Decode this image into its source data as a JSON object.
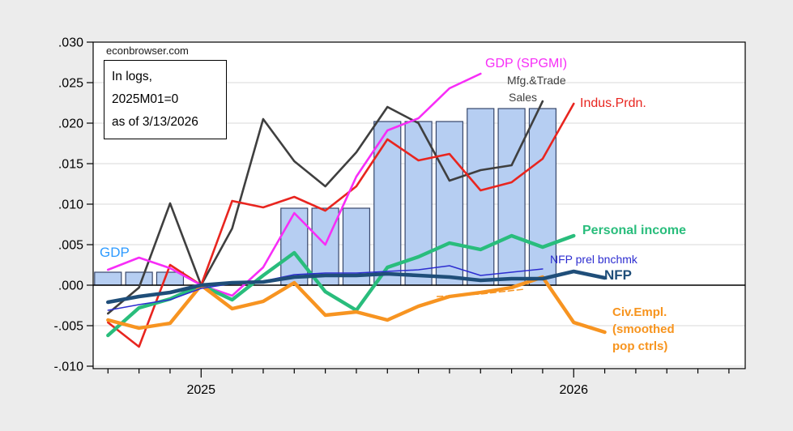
{
  "watermark": "econbrowser.com",
  "annotation": {
    "line1": "In logs,",
    "line2": "2025M01=0",
    "line3": "as of 3/13/2026"
  },
  "chart_data": {
    "type": "combo-bar-line",
    "x_axis": {
      "start_month": "2024-10",
      "months_ticked": 21,
      "year_ticks": [
        {
          "index": 3,
          "label": "2025"
        },
        {
          "index": 15,
          "label": "2026"
        }
      ]
    },
    "y_axis": {
      "min": -0.01,
      "max": 0.03,
      "step": 0.005,
      "grid": true,
      "tick_labels": [
        ".030",
        ".025",
        ".020",
        ".015",
        ".010",
        ".005",
        ".000",
        "-.005",
        "-.010"
      ],
      "tick_values": [
        0.03,
        0.025,
        0.02,
        0.015,
        0.01,
        0.005,
        0.0,
        -0.005,
        -0.01
      ]
    },
    "series": [
      {
        "name": "GDP",
        "type": "bar",
        "fill": "#b6cef2",
        "stroke": "#37476b",
        "points": [
          [
            0,
            0.0016
          ],
          [
            1,
            0.0016
          ],
          [
            2,
            0.0016
          ],
          [
            6,
            0.0095
          ],
          [
            7,
            0.0095
          ],
          [
            8,
            0.0095
          ],
          [
            9,
            0.0202
          ],
          [
            10,
            0.0202
          ],
          [
            11,
            0.0202
          ],
          [
            12,
            0.0218
          ],
          [
            13,
            0.0218
          ],
          [
            14,
            0.0218
          ]
        ]
      },
      {
        "name": "Mfg.&Trade Sales",
        "type": "line",
        "color": "#3f3f3f",
        "width": 2.6,
        "points": [
          [
            0,
            -0.0035
          ],
          [
            1,
            -0.0003
          ],
          [
            2,
            0.0101
          ],
          [
            3,
            0
          ],
          [
            4,
            0.007
          ],
          [
            5,
            0.0205
          ],
          [
            6,
            0.0153
          ],
          [
            7,
            0.0122
          ],
          [
            8,
            0.0164
          ],
          [
            9,
            0.022
          ],
          [
            10,
            0.02
          ],
          [
            11,
            0.0129
          ],
          [
            12,
            0.0142
          ],
          [
            13,
            0.0148
          ],
          [
            14,
            0.0227
          ]
        ]
      },
      {
        "name": "Indus.Prdn.",
        "type": "line",
        "color": "#e8251f",
        "width": 2.6,
        "points": [
          [
            0,
            -0.0046
          ],
          [
            1,
            -0.0076
          ],
          [
            2,
            0.0025
          ],
          [
            3,
            0
          ],
          [
            4,
            0.0104
          ],
          [
            5,
            0.0096
          ],
          [
            6,
            0.0109
          ],
          [
            7,
            0.0092
          ],
          [
            8,
            0.0122
          ],
          [
            9,
            0.018
          ],
          [
            10,
            0.0154
          ],
          [
            11,
            0.0162
          ],
          [
            12,
            0.0117
          ],
          [
            13,
            0.0127
          ],
          [
            14,
            0.0156
          ],
          [
            15,
            0.0224
          ]
        ]
      },
      {
        "name": "GDP (SPGMI)",
        "type": "line",
        "color": "#f72df7",
        "width": 2.6,
        "points": [
          [
            0,
            0.0019
          ],
          [
            1,
            0.0034
          ],
          [
            2,
            0.0021
          ],
          [
            3,
            0
          ],
          [
            4,
            -0.0013
          ],
          [
            5,
            0.0022
          ],
          [
            6,
            0.0089
          ],
          [
            7,
            0.005
          ],
          [
            8,
            0.0134
          ],
          [
            9,
            0.0191
          ],
          [
            10,
            0.0206
          ],
          [
            11,
            0.0243
          ],
          [
            12,
            0.0261
          ]
        ]
      },
      {
        "name": "Personal income",
        "type": "line",
        "color": "#29bd7c",
        "width": 4.4,
        "points": [
          [
            0,
            -0.0062
          ],
          [
            1,
            -0.0028
          ],
          [
            2,
            -0.0017
          ],
          [
            3,
            0
          ],
          [
            4,
            -0.0018
          ],
          [
            5,
            0.0012
          ],
          [
            6,
            0.004
          ],
          [
            7,
            -0.0008
          ],
          [
            8,
            -0.0031
          ],
          [
            9,
            0.0022
          ],
          [
            10,
            0.0035
          ],
          [
            11,
            0.0052
          ],
          [
            12,
            0.0044
          ],
          [
            13,
            0.0061
          ],
          [
            14,
            0.0047
          ],
          [
            15,
            0.0061
          ]
        ]
      },
      {
        "name": "Civ.Empl. (smoothed pop ctrls)",
        "type": "line",
        "color": "#f79421",
        "width": 4.4,
        "points": [
          [
            0,
            -0.0043
          ],
          [
            1,
            -0.0053
          ],
          [
            2,
            -0.0047
          ],
          [
            3,
            0
          ],
          [
            4,
            -0.0029
          ],
          [
            5,
            -0.002
          ],
          [
            6,
            0.0003
          ],
          [
            7,
            -0.0037
          ],
          [
            8,
            -0.0033
          ],
          [
            9,
            -0.0043
          ],
          [
            10,
            -0.0026
          ],
          [
            11,
            -0.0014
          ],
          [
            12,
            -0.0009
          ],
          [
            13,
            -0.0003
          ],
          [
            14,
            0.001
          ],
          [
            15,
            -0.0046
          ],
          [
            16,
            -0.0058
          ]
        ]
      },
      {
        "name": "Civ.Empl. dashed segment",
        "type": "line",
        "color": "#f79421",
        "width": 1.5,
        "dash": "7 4",
        "points": [
          [
            10.6,
            -0.0014
          ],
          [
            12,
            -0.0011
          ],
          [
            13.4,
            -0.0005
          ]
        ]
      },
      {
        "name": "NFP prel bnchmk",
        "type": "line",
        "color": "#2d2dd0",
        "width": 1.5,
        "points": [
          [
            0,
            -0.0031
          ],
          [
            1,
            -0.0024
          ],
          [
            2,
            -0.0018
          ],
          [
            3,
            -0.0004
          ],
          [
            4,
            0.0002
          ],
          [
            5,
            0.0005
          ],
          [
            6,
            0.0013
          ],
          [
            7,
            0.0015
          ],
          [
            8,
            0.0015
          ],
          [
            9,
            0.0017
          ],
          [
            10,
            0.0019
          ],
          [
            11,
            0.0024
          ],
          [
            12,
            0.0012
          ],
          [
            13,
            0.0016
          ],
          [
            14,
            0.002
          ]
        ]
      },
      {
        "name": "NFP",
        "type": "line",
        "color": "#1f4e79",
        "width": 4.6,
        "points": [
          [
            0,
            -0.0021
          ],
          [
            1,
            -0.0014
          ],
          [
            2,
            -0.0009
          ],
          [
            3,
            0
          ],
          [
            4,
            0.0003
          ],
          [
            5,
            0.0004
          ],
          [
            6,
            0.001
          ],
          [
            7,
            0.0012
          ],
          [
            8,
            0.0012
          ],
          [
            9,
            0.0014
          ],
          [
            10,
            0.0012
          ],
          [
            11,
            0.001
          ],
          [
            12,
            0.0006
          ],
          [
            13,
            0.0008
          ],
          [
            14,
            0.0008
          ],
          [
            15,
            0.0017
          ],
          [
            16,
            0.0009
          ]
        ]
      }
    ],
    "labels": [
      {
        "name": "label-gdp-bars",
        "text": "GDP",
        "x": 123,
        "y": 303,
        "color": "#2e9bff",
        "size": 17,
        "weight": 400
      },
      {
        "name": "label-gdp-spgmi",
        "text": "GDP (SPGMI)",
        "x": 599,
        "y": 70,
        "color": "#f72df7",
        "size": 16,
        "weight": 400
      },
      {
        "name": "label-mfg-trade-1",
        "text": "Mfg.&Trade",
        "x": 626,
        "y": 92,
        "color": "#3f3f3f",
        "size": 14,
        "weight": 400
      },
      {
        "name": "label-mfg-trade-2",
        "text": "Sales",
        "x": 628,
        "y": 113,
        "color": "#3f3f3f",
        "size": 14,
        "weight": 400
      },
      {
        "name": "label-indus-prdn",
        "text": "Indus.Prdn.",
        "x": 716,
        "y": 119,
        "color": "#e8251f",
        "size": 16,
        "weight": 400
      },
      {
        "name": "label-personal-income",
        "text": "Personal income",
        "x": 719,
        "y": 276,
        "color": "#29bd7c",
        "size": 16,
        "weight": 700
      },
      {
        "name": "label-nfp-prel",
        "text": "NFP prel bnchmk",
        "x": 679,
        "y": 313,
        "color": "#2d2dd0",
        "size": 14,
        "weight": 400
      },
      {
        "name": "label-nfp",
        "text": "NFP",
        "x": 746,
        "y": 331,
        "color": "#1f4e79",
        "size": 17,
        "weight": 700
      },
      {
        "name": "label-civ-empl-1",
        "text": "Civ.Empl.",
        "x": 756,
        "y": 378,
        "color": "#f7941e",
        "size": 15,
        "weight": 700
      },
      {
        "name": "label-civ-empl-2",
        "text": "(smoothed",
        "x": 756,
        "y": 399,
        "color": "#f7941e",
        "size": 15,
        "weight": 700
      },
      {
        "name": "label-civ-empl-3",
        "text": "pop ctrls)",
        "x": 756,
        "y": 420,
        "color": "#f7941e",
        "size": 15,
        "weight": 700
      }
    ],
    "colors": {
      "background": "#ececec",
      "plot_background": "#ffffff",
      "gridline": "#d9d9d9",
      "frame": "#000000",
      "zero_line": "#000000"
    }
  }
}
